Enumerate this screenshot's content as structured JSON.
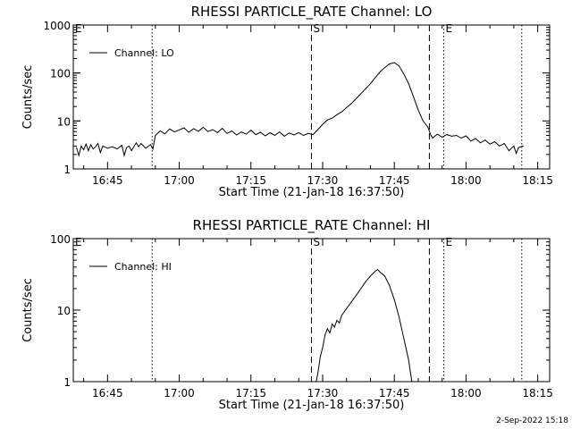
{
  "footer": {
    "timestamp": "2-Sep-2022 15:18"
  },
  "chart_data": [
    {
      "type": "line",
      "title": "RHESSI PARTICLE_RATE Channel: LO",
      "xlabel": "Start Time (21-Jan-18 16:37:50)",
      "ylabel": "Counts/sec",
      "yscale": "log",
      "ylim": [
        1,
        1000
      ],
      "y_ticks": [
        1,
        10,
        100,
        1000
      ],
      "y_tick_labels": [
        "1",
        "10",
        "100",
        "1000"
      ],
      "xlim": [
        "16:37:50",
        "18:17:30"
      ],
      "x_ticks": [
        "16:45",
        "17:00",
        "17:15",
        "17:30",
        "17:45",
        "18:00",
        "18:15"
      ],
      "legend": {
        "position": "top-left",
        "entries": [
          "Channel: LO"
        ]
      },
      "markers": [
        {
          "label": "E",
          "time": "16:37:50",
          "style": "dotted"
        },
        {
          "label": "",
          "time": "16:54:20",
          "style": "dotted"
        },
        {
          "label": "S",
          "time": "17:27:40",
          "style": "dashed"
        },
        {
          "label": "",
          "time": "17:52:20",
          "style": "dashed"
        },
        {
          "label": "E",
          "time": "17:55:20",
          "style": "dotted"
        },
        {
          "label": "",
          "time": "18:11:40",
          "style": "dotted"
        }
      ],
      "series": [
        {
          "name": "Channel: LO",
          "points": [
            [
              "16:38:30",
              2.8
            ],
            [
              "16:39:00",
              1.9
            ],
            [
              "16:39:30",
              3.0
            ],
            [
              "16:40:00",
              2.5
            ],
            [
              "16:40:30",
              3.3
            ],
            [
              "16:41:00",
              2.4
            ],
            [
              "16:41:30",
              3.2
            ],
            [
              "16:42:00",
              2.6
            ],
            [
              "16:42:30",
              2.9
            ],
            [
              "16:43:00",
              3.4
            ],
            [
              "16:43:30",
              2.2
            ],
            [
              "16:44:00",
              3.0
            ],
            [
              "16:45:00",
              2.7
            ],
            [
              "16:46:00",
              2.9
            ],
            [
              "16:47:00",
              2.6
            ],
            [
              "16:48:00",
              3.1
            ],
            [
              "16:48:30",
              1.9
            ],
            [
              "16:49:00",
              2.8
            ],
            [
              "16:49:30",
              3.0
            ],
            [
              "16:50:00",
              2.4
            ],
            [
              "16:51:00",
              3.5
            ],
            [
              "16:51:30",
              2.9
            ],
            [
              "16:52:00",
              3.4
            ],
            [
              "16:53:00",
              2.7
            ],
            [
              "16:54:00",
              3.2
            ],
            [
              "16:54:30",
              2.6
            ],
            [
              "16:55:00",
              5.0
            ],
            [
              "16:56:00",
              6.2
            ],
            [
              "16:57:00",
              5.4
            ],
            [
              "16:58:00",
              6.8
            ],
            [
              "16:59:00",
              5.9
            ],
            [
              "17:00:00",
              6.5
            ],
            [
              "17:01:00",
              7.2
            ],
            [
              "17:02:00",
              5.8
            ],
            [
              "17:03:00",
              6.9
            ],
            [
              "17:04:00",
              6.1
            ],
            [
              "17:05:00",
              7.4
            ],
            [
              "17:06:00",
              6.0
            ],
            [
              "17:07:00",
              6.6
            ],
            [
              "17:08:00",
              5.7
            ],
            [
              "17:09:00",
              7.0
            ],
            [
              "17:10:00",
              5.5
            ],
            [
              "17:11:00",
              6.2
            ],
            [
              "17:12:00",
              5.1
            ],
            [
              "17:13:00",
              5.9
            ],
            [
              "17:14:00",
              5.3
            ],
            [
              "17:15:00",
              6.4
            ],
            [
              "17:16:00",
              5.2
            ],
            [
              "17:17:00",
              5.8
            ],
            [
              "17:18:00",
              4.9
            ],
            [
              "17:19:00",
              5.7
            ],
            [
              "17:20:00",
              5.0
            ],
            [
              "17:21:00",
              5.9
            ],
            [
              "17:22:00",
              4.8
            ],
            [
              "17:23:00",
              5.6
            ],
            [
              "17:24:00",
              5.1
            ],
            [
              "17:25:00",
              5.7
            ],
            [
              "17:26:00",
              5.0
            ],
            [
              "17:27:00",
              5.5
            ],
            [
              "17:28:00",
              5.2
            ],
            [
              "17:29:00",
              6.6
            ],
            [
              "17:30:00",
              8.5
            ],
            [
              "17:31:00",
              10.5
            ],
            [
              "17:32:00",
              11.5
            ],
            [
              "17:33:00",
              13.5
            ],
            [
              "17:34:00",
              15.5
            ],
            [
              "17:35:00",
              19
            ],
            [
              "17:36:00",
              23
            ],
            [
              "17:37:00",
              29
            ],
            [
              "17:38:00",
              37
            ],
            [
              "17:39:00",
              47
            ],
            [
              "17:40:00",
              60
            ],
            [
              "17:41:00",
              80
            ],
            [
              "17:42:00",
              105
            ],
            [
              "17:43:00",
              130
            ],
            [
              "17:44:00",
              155
            ],
            [
              "17:45:00",
              165
            ],
            [
              "17:46:00",
              140
            ],
            [
              "17:47:00",
              95
            ],
            [
              "17:48:00",
              60
            ],
            [
              "17:49:00",
              32
            ],
            [
              "17:50:00",
              17
            ],
            [
              "17:51:00",
              10
            ],
            [
              "17:52:00",
              7.5
            ],
            [
              "17:52:40",
              5.0
            ],
            [
              "17:53:00",
              4.4
            ],
            [
              "17:54:00",
              5.3
            ],
            [
              "17:55:00",
              4.6
            ],
            [
              "17:56:00",
              5.2
            ],
            [
              "17:57:00",
              4.8
            ],
            [
              "17:58:00",
              5.0
            ],
            [
              "17:59:00",
              4.4
            ],
            [
              "18:00:00",
              4.9
            ],
            [
              "18:01:00",
              3.8
            ],
            [
              "18:02:00",
              4.3
            ],
            [
              "18:03:00",
              3.5
            ],
            [
              "18:04:00",
              4.0
            ],
            [
              "18:05:00",
              3.3
            ],
            [
              "18:06:00",
              3.7
            ],
            [
              "18:07:00",
              3.0
            ],
            [
              "18:08:00",
              3.4
            ],
            [
              "18:09:00",
              2.4
            ],
            [
              "18:10:00",
              3.0
            ],
            [
              "18:10:30",
              2.1
            ],
            [
              "18:11:00",
              2.8
            ],
            [
              "18:12:00",
              3.0
            ]
          ]
        }
      ]
    },
    {
      "type": "line",
      "title": "RHESSI PARTICLE_RATE Channel: HI",
      "xlabel": "Start Time (21-Jan-18 16:37:50)",
      "ylabel": "Counts/sec",
      "yscale": "log",
      "ylim": [
        1,
        100
      ],
      "y_ticks": [
        1,
        10,
        100
      ],
      "y_tick_labels": [
        "1",
        "10",
        "100"
      ],
      "xlim": [
        "16:37:50",
        "18:17:30"
      ],
      "x_ticks": [
        "16:45",
        "17:00",
        "17:15",
        "17:30",
        "17:45",
        "18:00",
        "18:15"
      ],
      "legend": {
        "position": "top-left",
        "entries": [
          "Channel: HI"
        ]
      },
      "markers": [
        {
          "label": "E",
          "time": "16:37:50",
          "style": "dotted"
        },
        {
          "label": "",
          "time": "16:54:20",
          "style": "dotted"
        },
        {
          "label": "S",
          "time": "17:27:40",
          "style": "dashed"
        },
        {
          "label": "",
          "time": "17:52:20",
          "style": "dashed"
        },
        {
          "label": "E",
          "time": "17:55:20",
          "style": "dotted"
        },
        {
          "label": "",
          "time": "18:11:40",
          "style": "dotted"
        }
      ],
      "series": [
        {
          "name": "Channel: HI",
          "points": [
            [
              "17:28:40",
              1.0
            ],
            [
              "17:29:00",
              1.3
            ],
            [
              "17:29:30",
              2.2
            ],
            [
              "17:30:00",
              3.0
            ],
            [
              "17:30:30",
              4.5
            ],
            [
              "17:31:00",
              5.5
            ],
            [
              "17:31:30",
              4.8
            ],
            [
              "17:32:00",
              6.4
            ],
            [
              "17:32:30",
              5.8
            ],
            [
              "17:33:00",
              7.2
            ],
            [
              "17:33:30",
              6.6
            ],
            [
              "17:34:00",
              8.5
            ],
            [
              "17:35:00",
              10.5
            ],
            [
              "17:36:00",
              13
            ],
            [
              "17:37:00",
              16
            ],
            [
              "17:38:00",
              20
            ],
            [
              "17:39:00",
              25
            ],
            [
              "17:40:00",
              30
            ],
            [
              "17:41:00",
              35
            ],
            [
              "17:41:30",
              37
            ],
            [
              "17:42:00",
              34
            ],
            [
              "17:43:00",
              30
            ],
            [
              "17:44:00",
              22
            ],
            [
              "17:45:00",
              14
            ],
            [
              "17:46:00",
              8
            ],
            [
              "17:47:00",
              4
            ],
            [
              "17:48:00",
              2.0
            ],
            [
              "17:48:40",
              1.0
            ]
          ]
        }
      ]
    }
  ]
}
